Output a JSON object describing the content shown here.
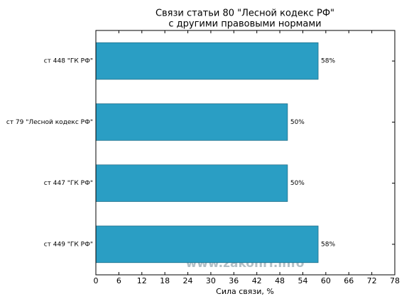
{
  "chart_data": {
    "type": "barh",
    "title": [
      "Связи статьи 80 \"Лесной кодекс РФ\"",
      "с другими правовыми нормами"
    ],
    "xlabel": "Сила связи, %",
    "categories": [
      "ст 448 \"ГК РФ\"",
      "ст 79 \"Лесной кодекс РФ\"",
      "ст 447 \"ГК РФ\"",
      "ст 449 \"ГК РФ\""
    ],
    "values": [
      58,
      50,
      50,
      58
    ],
    "value_labels": [
      "58%",
      "50%",
      "50%",
      "58%"
    ],
    "color": "#2a9ec4",
    "xlim": [
      0,
      78
    ],
    "xticks": [
      0,
      6,
      12,
      18,
      24,
      30,
      36,
      42,
      48,
      54,
      60,
      66,
      72,
      78
    ],
    "watermark": "www.zakonrf.info"
  }
}
